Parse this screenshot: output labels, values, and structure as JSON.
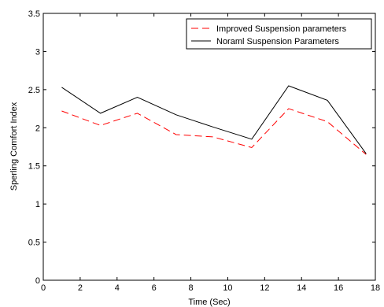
{
  "chart_data": {
    "type": "line",
    "title": "",
    "xlabel": "Time (Sec)",
    "ylabel": "Sperling Comfort Index",
    "xlim": [
      0,
      18
    ],
    "ylim": [
      0,
      3.5
    ],
    "x_ticks": [
      "0",
      "2",
      "4",
      "6",
      "8",
      "10",
      "12",
      "14",
      "16",
      "18"
    ],
    "y_ticks": [
      "0",
      "0.5",
      "1",
      "1.5",
      "2",
      "2.5",
      "3",
      "3.5"
    ],
    "grid": false,
    "legend_position": "top-right",
    "x": [
      1,
      3.1,
      5.1,
      7.2,
      9.2,
      11.3,
      13.3,
      15.4,
      17.5
    ],
    "series": [
      {
        "name": "Improved Suspension parameters",
        "color": "#ff0000",
        "style": "dashed",
        "values": [
          2.22,
          2.03,
          2.19,
          1.91,
          1.88,
          1.74,
          2.25,
          2.08,
          1.65
        ]
      },
      {
        "name": "Noraml Suspension Parameters",
        "color": "#000000",
        "style": "solid",
        "values": [
          2.53,
          2.19,
          2.4,
          2.17,
          2.01,
          1.85,
          2.55,
          2.36,
          1.66
        ]
      }
    ]
  }
}
